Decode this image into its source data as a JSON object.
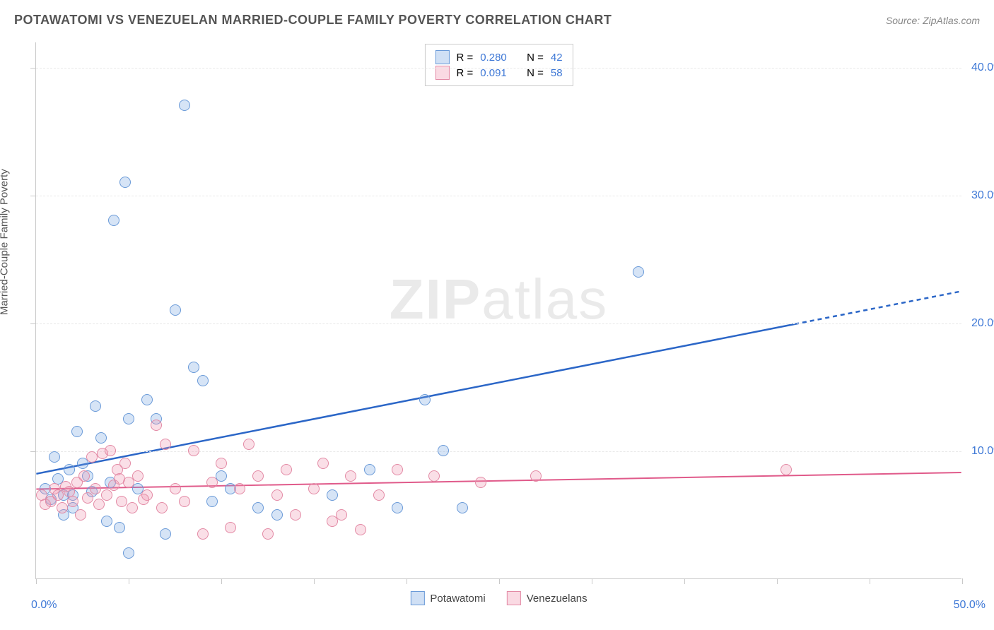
{
  "title": "POTAWATOMI VS VENEZUELAN MARRIED-COUPLE FAMILY POVERTY CORRELATION CHART",
  "source": "Source: ZipAtlas.com",
  "watermark_a": "ZIP",
  "watermark_b": "atlas",
  "y_axis_title": "Married-Couple Family Poverty",
  "chart": {
    "type": "scatter",
    "background_color": "#ffffff",
    "grid_color": "#e8e8e8",
    "axis_color": "#c9c9c9",
    "label_color": "#3e78d6",
    "xlim": [
      0,
      50
    ],
    "ylim": [
      0,
      42
    ],
    "x_labels": {
      "min": "0.0%",
      "max": "50.0%"
    },
    "y_ticks": [
      10,
      20,
      30,
      40
    ],
    "y_tick_labels": [
      "10.0%",
      "20.0%",
      "30.0%",
      "40.0%"
    ],
    "x_tick_positions": [
      0,
      5,
      10,
      15,
      20,
      25,
      30,
      35,
      40,
      45,
      50
    ],
    "point_radius": 8,
    "series": [
      {
        "name": "Potawatomi",
        "color_fill": "rgba(120,165,225,0.30)",
        "color_stroke": "#6a9ad8",
        "trend_color": "#2b66c7",
        "trend_width": 2.5,
        "r": "0.280",
        "n": "42",
        "trend": {
          "x1": 0,
          "y1": 8.2,
          "x2": 50,
          "y2": 22.5,
          "solid_until_x": 41
        },
        "points": [
          [
            0.5,
            7
          ],
          [
            0.8,
            6.2
          ],
          [
            1.0,
            9.5
          ],
          [
            1.2,
            7.8
          ],
          [
            1.5,
            6.5
          ],
          [
            1.8,
            8.5
          ],
          [
            2.0,
            5.5
          ],
          [
            2.2,
            11.5
          ],
          [
            2.5,
            9
          ],
          [
            2.8,
            8
          ],
          [
            3.0,
            6.8
          ],
          [
            3.2,
            13.5
          ],
          [
            3.5,
            11
          ],
          [
            3.8,
            4.5
          ],
          [
            4.0,
            7.5
          ],
          [
            4.2,
            28
          ],
          [
            4.5,
            4
          ],
          [
            4.8,
            31
          ],
          [
            5.0,
            12.5
          ],
          [
            5.0,
            2
          ],
          [
            5.5,
            7
          ],
          [
            6.0,
            14
          ],
          [
            6.5,
            12.5
          ],
          [
            7.0,
            3.5
          ],
          [
            7.5,
            21
          ],
          [
            8.0,
            37
          ],
          [
            8.5,
            16.5
          ],
          [
            9.0,
            15.5
          ],
          [
            9.5,
            6
          ],
          [
            10.0,
            8
          ],
          [
            10.5,
            7
          ],
          [
            12.0,
            5.5
          ],
          [
            13.0,
            5
          ],
          [
            16.0,
            6.5
          ],
          [
            18.0,
            8.5
          ],
          [
            19.5,
            5.5
          ],
          [
            21.0,
            14
          ],
          [
            22.0,
            10
          ],
          [
            23.0,
            5.5
          ],
          [
            32.5,
            24
          ],
          [
            1.5,
            5
          ],
          [
            2.0,
            6.5
          ]
        ]
      },
      {
        "name": "Venezuelans",
        "color_fill": "rgba(240,150,175,0.30)",
        "color_stroke": "#e38aa5",
        "trend_color": "#e05a8a",
        "trend_width": 2,
        "r": "0.091",
        "n": "58",
        "trend": {
          "x1": 0,
          "y1": 7,
          "x2": 50,
          "y2": 8.3,
          "solid_until_x": 50
        },
        "points": [
          [
            0.3,
            6.5
          ],
          [
            0.5,
            5.8
          ],
          [
            0.8,
            6
          ],
          [
            1.0,
            7
          ],
          [
            1.2,
            6.5
          ],
          [
            1.4,
            5.5
          ],
          [
            1.6,
            7.2
          ],
          [
            1.8,
            6.8
          ],
          [
            2.0,
            6
          ],
          [
            2.2,
            7.5
          ],
          [
            2.4,
            5
          ],
          [
            2.6,
            8
          ],
          [
            2.8,
            6.3
          ],
          [
            3.0,
            9.5
          ],
          [
            3.2,
            7
          ],
          [
            3.4,
            5.8
          ],
          [
            3.6,
            9.8
          ],
          [
            3.8,
            6.5
          ],
          [
            4.0,
            10
          ],
          [
            4.2,
            7.3
          ],
          [
            4.4,
            8.5
          ],
          [
            4.6,
            6
          ],
          [
            4.8,
            9
          ],
          [
            5.0,
            7.5
          ],
          [
            5.2,
            5.5
          ],
          [
            5.5,
            8
          ],
          [
            6.0,
            6.5
          ],
          [
            6.5,
            12
          ],
          [
            7.0,
            10.5
          ],
          [
            7.5,
            7
          ],
          [
            8.0,
            6
          ],
          [
            8.5,
            10
          ],
          [
            9.0,
            3.5
          ],
          [
            9.5,
            7.5
          ],
          [
            10.0,
            9
          ],
          [
            10.5,
            4
          ],
          [
            11.0,
            7
          ],
          [
            11.5,
            10.5
          ],
          [
            12.0,
            8
          ],
          [
            12.5,
            3.5
          ],
          [
            13.0,
            6.5
          ],
          [
            13.5,
            8.5
          ],
          [
            14.0,
            5
          ],
          [
            15.0,
            7
          ],
          [
            15.5,
            9
          ],
          [
            16.0,
            4.5
          ],
          [
            16.5,
            5
          ],
          [
            17.0,
            8
          ],
          [
            17.5,
            3.8
          ],
          [
            18.5,
            6.5
          ],
          [
            19.5,
            8.5
          ],
          [
            21.5,
            8
          ],
          [
            24.0,
            7.5
          ],
          [
            27.0,
            8
          ],
          [
            40.5,
            8.5
          ],
          [
            4.5,
            7.8
          ],
          [
            5.8,
            6.2
          ],
          [
            6.8,
            5.5
          ]
        ]
      }
    ]
  },
  "legend_bottom": [
    {
      "swatch": "blue",
      "label": "Potawatomi"
    },
    {
      "swatch": "pink",
      "label": "Venezuelans"
    }
  ],
  "legend_top_text": {
    "r_label": "R =",
    "n_label": "N ="
  }
}
